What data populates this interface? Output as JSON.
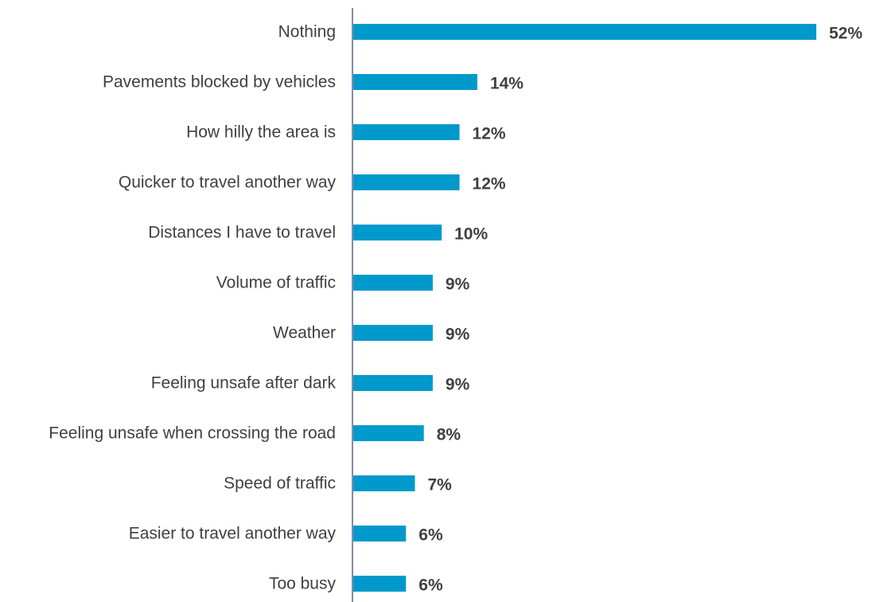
{
  "chart_data": {
    "type": "bar",
    "orientation": "horizontal",
    "categories": [
      "Nothing",
      "Pavements blocked by vehicles",
      "How hilly the area is",
      "Quicker to travel another way",
      "Distances I have to travel",
      "Volume of traffic",
      "Weather",
      "Feeling unsafe after dark",
      "Feeling unsafe when crossing the road",
      "Speed of traffic",
      "Easier to travel another way",
      "Too busy"
    ],
    "values": [
      52,
      14,
      12,
      12,
      10,
      9,
      9,
      9,
      8,
      7,
      6,
      6
    ],
    "value_labels": [
      "52%",
      "14%",
      "12%",
      "12%",
      "10%",
      "9%",
      "9%",
      "9%",
      "8%",
      "7%",
      "6%",
      "6%"
    ],
    "title": "",
    "xlabel": "",
    "ylabel": "",
    "xlim": [
      0,
      52
    ],
    "grid": false,
    "legend": "none",
    "colors": {
      "bar": "#0099CC",
      "axis": "#7F8FA6",
      "text": "#404040"
    }
  }
}
